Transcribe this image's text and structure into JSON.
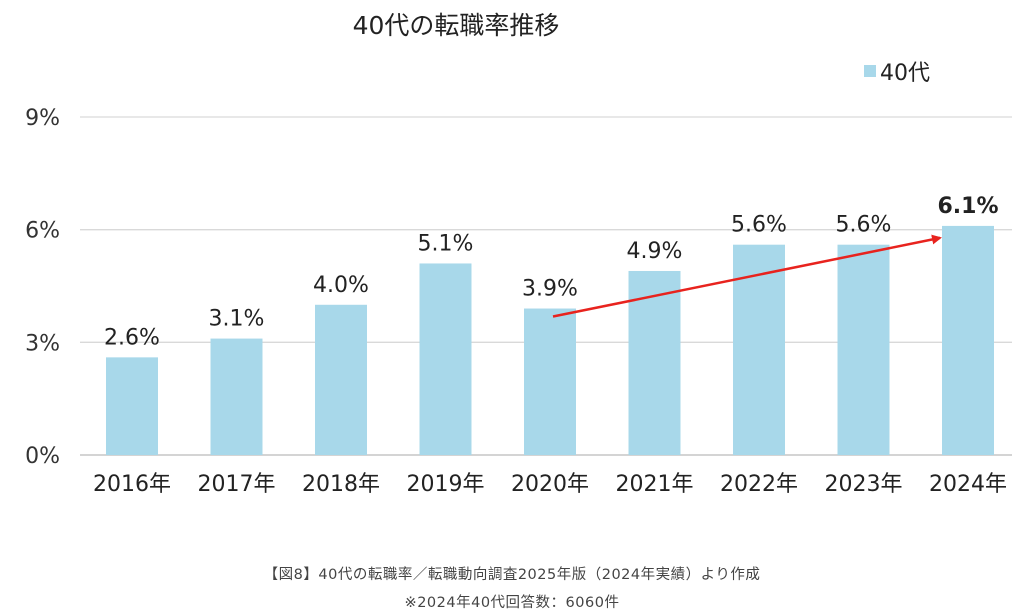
{
  "chart_data": {
    "type": "bar",
    "title": "40代の転職率推移",
    "categories": [
      "2016年",
      "2017年",
      "2018年",
      "2019年",
      "2020年",
      "2021年",
      "2022年",
      "2023年",
      "2024年"
    ],
    "series": [
      {
        "name": "40代",
        "values": [
          2.6,
          3.1,
          4.0,
          5.1,
          3.9,
          4.9,
          5.6,
          5.6,
          6.1
        ],
        "color": "#a8d8ea"
      }
    ],
    "data_labels": [
      "2.6%",
      "3.1%",
      "4.0%",
      "5.1%",
      "3.9%",
      "4.9%",
      "5.6%",
      "5.6%",
      "6.1%"
    ],
    "highlight_label_index": 8,
    "yticks": [
      0,
      3,
      6,
      9
    ],
    "ytick_labels": [
      "0%",
      "3%",
      "6%",
      "9%"
    ],
    "ylim": [
      0,
      9
    ],
    "grid": true,
    "legend_position": "top-right",
    "trend_arrow": {
      "from_category": "2020年",
      "to_category": "2024年",
      "from_value": 3.9,
      "to_value": 6.1,
      "color": "#e8231e"
    }
  },
  "captions": {
    "source": "【図8】40代の転職率／転職動向調査2025年版（2024年実績）より作成",
    "note": "※2024年40代回答数：6060件"
  }
}
